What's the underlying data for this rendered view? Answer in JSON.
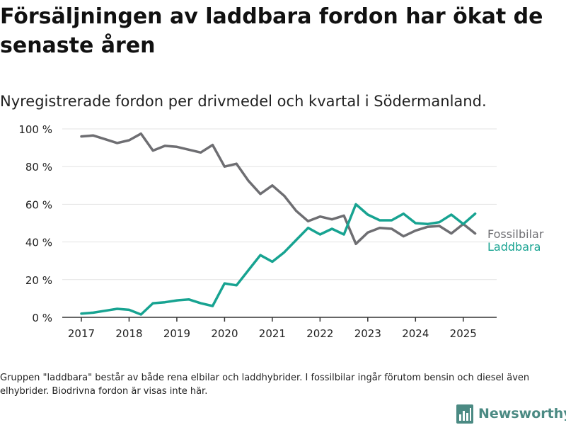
{
  "header": {
    "title": "Försäljningen av laddbara fordon har ökat de senaste åren",
    "subtitle": "Nyregistrerade fordon per drivmedel och kvartal i Södermanland."
  },
  "footnote": "Gruppen \"laddbara\" består av både rena elbilar och laddhybrider. I fossilbilar ingår förutom bensin och diesel även elhybrider. Biodrivna fordon är visas inte här.",
  "brand": {
    "name": "Newsworthy",
    "color": "#4b8a83",
    "icon": "bar-chart-logo-icon"
  },
  "chart_data": {
    "type": "line",
    "x": [
      2017.0,
      2017.25,
      2017.5,
      2017.75,
      2018.0,
      2018.25,
      2018.5,
      2018.75,
      2019.0,
      2019.25,
      2019.5,
      2019.75,
      2020.0,
      2020.25,
      2020.5,
      2020.75,
      2021.0,
      2021.25,
      2021.5,
      2021.75,
      2022.0,
      2022.25,
      2022.5,
      2022.75,
      2023.0,
      2023.25,
      2023.5,
      2023.75,
      2024.0,
      2024.25,
      2024.5,
      2024.75,
      2025.0,
      2025.25
    ],
    "xlim": [
      2016.6,
      2025.7
    ],
    "xticks": [
      2017,
      2018,
      2019,
      2020,
      2021,
      2022,
      2023,
      2024,
      2025
    ],
    "xtick_labels": [
      "2017",
      "2018",
      "2019",
      "2020",
      "2021",
      "2022",
      "2023",
      "2024",
      "2025"
    ],
    "ylim": [
      0,
      100
    ],
    "yticks": [
      0,
      20,
      40,
      60,
      80,
      100
    ],
    "ytick_labels": [
      "0 %",
      "20 %",
      "40 %",
      "60 %",
      "80 %",
      "100 %"
    ],
    "grid": true,
    "legend": "direct labels at line ends",
    "series": [
      {
        "name": "Fossilbilar",
        "color": "#6e6e72",
        "values": [
          96,
          96.5,
          94.5,
          92.5,
          94,
          97.5,
          88.5,
          91,
          90.5,
          89,
          87.5,
          91.5,
          80,
          81.5,
          72.5,
          65.5,
          70,
          64.5,
          56.5,
          51,
          53.5,
          52,
          54,
          39,
          45,
          47.5,
          47,
          43,
          46,
          48,
          48.5,
          44.5,
          49.5,
          44.5
        ]
      },
      {
        "name": "Laddbara",
        "color": "#17a391",
        "values": [
          2,
          2.5,
          3.5,
          4.5,
          4,
          1.5,
          7.5,
          8,
          9,
          9.5,
          7.5,
          6,
          18,
          17,
          25,
          33,
          29.5,
          34.5,
          41,
          47.5,
          44,
          47,
          44,
          60,
          54.5,
          51.5,
          51.5,
          55,
          50,
          49.5,
          50.5,
          54.5,
          49.5,
          55
        ]
      }
    ]
  }
}
